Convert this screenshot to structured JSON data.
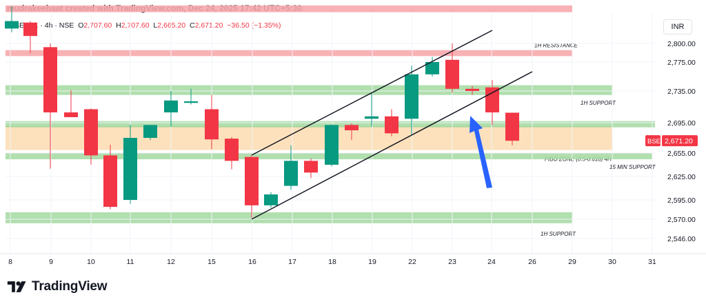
{
  "header": {
    "title": "mudrakeebaat created with TradingView.com, Dec 24, 2025 17:42 UTC+5:30"
  },
  "symbol": {
    "name": "BSE Ltd. · 4h · NSE",
    "o_label": "O",
    "o": "2,707.60",
    "h_label": "H",
    "h": "2,707.60",
    "l_label": "L",
    "l": "2,665.20",
    "c_label": "C",
    "c": "2,671.20",
    "change": "−36.50 (−1.35%)"
  },
  "currency": "INR",
  "brand": {
    "name": "TradingView"
  },
  "colors": {
    "up": "#089981",
    "down": "#f23645",
    "resistance": "#f7a8ac",
    "support": "#a9dca5",
    "fibo": "#fcdcb0",
    "arrow": "#2962ff"
  },
  "chart_data": {
    "type": "candlestick",
    "yaxis_ticks": [
      "2,800.00",
      "2,775.00",
      "2,735.00",
      "2,695.00",
      "2,655.00",
      "2,625.00",
      "2,595.00",
      "2,570.00",
      "2,546.00"
    ],
    "xaxis_ticks": [
      "8",
      "9",
      "10",
      "11",
      "12",
      "15",
      "16",
      "17",
      "18",
      "19",
      "22",
      "23",
      "24",
      "26",
      "29",
      "30",
      "31"
    ],
    "price_label": {
      "ticker": "BSE",
      "value": "2,671.20"
    },
    "candles": [
      {
        "o": 2820,
        "h": 2850,
        "l": 2815,
        "c": 2830
      },
      {
        "o": 2828,
        "h": 2830,
        "l": 2787,
        "c": 2810
      },
      {
        "o": 2795,
        "h": 2800,
        "l": 2635,
        "c": 2708
      },
      {
        "o": 2708,
        "h": 2736,
        "l": 2703,
        "c": 2702
      },
      {
        "o": 2712,
        "h": 2713,
        "l": 2640,
        "c": 2652
      },
      {
        "o": 2652,
        "h": 2666,
        "l": 2583,
        "c": 2586
      },
      {
        "o": 2595,
        "h": 2692,
        "l": 2590,
        "c": 2675
      },
      {
        "o": 2675,
        "h": 2691,
        "l": 2672,
        "c": 2692
      },
      {
        "o": 2708,
        "h": 2735,
        "l": 2690,
        "c": 2723
      },
      {
        "o": 2720,
        "h": 2738,
        "l": 2718,
        "c": 2722
      },
      {
        "o": 2712,
        "h": 2730,
        "l": 2660,
        "c": 2673
      },
      {
        "o": 2674,
        "h": 2676,
        "l": 2634,
        "c": 2645
      },
      {
        "o": 2650,
        "h": 2652,
        "l": 2572,
        "c": 2588
      },
      {
        "o": 2588,
        "h": 2605,
        "l": 2585,
        "c": 2602
      },
      {
        "o": 2613,
        "h": 2665,
        "l": 2608,
        "c": 2645
      },
      {
        "o": 2645,
        "h": 2648,
        "l": 2623,
        "c": 2630
      },
      {
        "o": 2640,
        "h": 2693,
        "l": 2638,
        "c": 2692
      },
      {
        "o": 2692,
        "h": 2694,
        "l": 2672,
        "c": 2685
      },
      {
        "o": 2700,
        "h": 2733,
        "l": 2690,
        "c": 2703
      },
      {
        "o": 2703,
        "h": 2712,
        "l": 2677,
        "c": 2681
      },
      {
        "o": 2700,
        "h": 2770,
        "l": 2680,
        "c": 2758
      },
      {
        "o": 2758,
        "h": 2782,
        "l": 2755,
        "c": 2775
      },
      {
        "o": 2778,
        "h": 2800,
        "l": 2733,
        "c": 2738
      },
      {
        "o": 2738,
        "h": 2742,
        "l": 2730,
        "c": 2735
      },
      {
        "o": 2740,
        "h": 2750,
        "l": 2692,
        "c": 2708
      },
      {
        "o": 2707.6,
        "h": 2707.6,
        "l": 2665.2,
        "c": 2671.2
      }
    ],
    "zones": [
      {
        "label": "",
        "from": 2842,
        "to": 2851,
        "type": "resistance"
      },
      {
        "label": "1H RESISTANCE",
        "from": 2783,
        "to": 2791,
        "type": "resistance"
      },
      {
        "label": "1H SUPPORT",
        "from": 2730,
        "to": 2743,
        "type": "support"
      },
      {
        "label": "FIBO ZONE (0.5-0.618) 4H",
        "from": 2659,
        "to": 2690,
        "type": "fibo"
      },
      {
        "label": "15 MIN SUPPORT",
        "from": 2647,
        "to": 2655,
        "type": "support"
      },
      {
        "label": "1H SUPPORT",
        "from": 2565,
        "to": 2579,
        "type": "support"
      }
    ]
  }
}
